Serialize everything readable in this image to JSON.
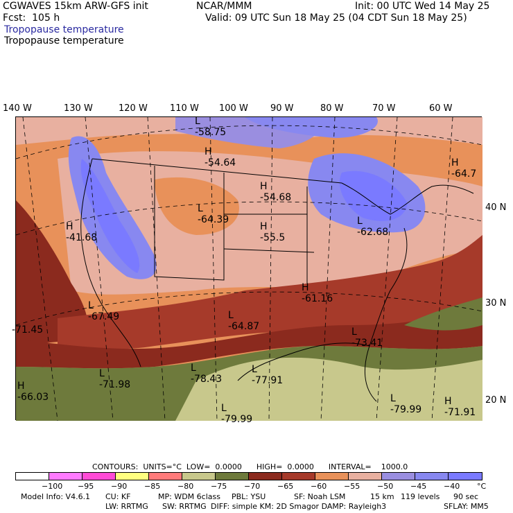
{
  "header": {
    "model": "CGWAVES 15km ARW-GFS init",
    "fcst": "Fcst:  105 h",
    "org": "NCAR/MMM",
    "init": "Init: 00 UTC Wed 14 May 25",
    "valid": "Valid: 09 UTC Sun 18 May 25 (04 CDT Sun 18 May 25)",
    "field1": "Tropopause temperature",
    "field2": "Tropopause temperature"
  },
  "lon_labels": [
    "140 W",
    "130 W",
    "120 W",
    "110 W",
    "100 W",
    "90 W",
    "80 W",
    "70 W",
    "60 W"
  ],
  "lat_labels": [
    "40 N",
    "30 N",
    "20 N"
  ],
  "map_labels": [
    {
      "mark": "L",
      "value": "-58.75"
    },
    {
      "mark": "H",
      "value": "-54.64"
    },
    {
      "mark": "H",
      "value": "-54.68"
    },
    {
      "mark": "L",
      "value": "-64.39"
    },
    {
      "mark": "H",
      "value": "-55.5"
    },
    {
      "mark": "L",
      "value": "-62.68"
    },
    {
      "mark": "H",
      "value": "-41.68"
    },
    {
      "mark": "H",
      "value": "-64.7"
    },
    {
      "mark": "L",
      "value": "-67.49"
    },
    {
      "mark": "H",
      "value": "-61.16"
    },
    {
      "mark": "L",
      "value": "-64.87"
    },
    {
      "mark": "",
      "value": "-71.45"
    },
    {
      "mark": "L",
      "value": "-73.41"
    },
    {
      "mark": "L",
      "value": "-71.98"
    },
    {
      "mark": "L",
      "value": "-78.43"
    },
    {
      "mark": "L",
      "value": "-77.91"
    },
    {
      "mark": "H",
      "value": "-66.03"
    },
    {
      "mark": "L",
      "value": "-79.99"
    },
    {
      "mark": "H",
      "value": "-71.91"
    },
    {
      "mark": "L",
      "value": "-79.99"
    }
  ],
  "contours": {
    "text": "CONTOURS:  UNITS=°C  LOW=  0.0000      HIGH=  0.0000      INTERVAL=    1000.0"
  },
  "colorbar": {
    "colors": [
      "#ffffff",
      "#ff7bff",
      "#ff4ad6",
      "#ffff80",
      "#ff7b7b",
      "#c8c88c",
      "#6e7a3c",
      "#8b2a1e",
      "#a63a2a",
      "#e8915a",
      "#e8b0a0",
      "#9a8ee0",
      "#8888f0",
      "#7a7aff"
    ],
    "labels": [
      "−100",
      "−95",
      "−90",
      "−85",
      "−80",
      "−75",
      "−70",
      "−65",
      "−60",
      "−55",
      "−50",
      "−45",
      "−40",
      "°C"
    ]
  },
  "footer": {
    "line1_a": "Model Info: V4.6.1",
    "line1_b": "CU: KF",
    "line1_c": "MP: WDM 6class",
    "line1_d": "PBL: YSU",
    "line1_e": "SF: Noah LSM",
    "line1_f": "15 km",
    "line1_g": "119 levels",
    "line1_h": "90 sec",
    "line2_a": "LW: RRTMG",
    "line2_b": "SW: RRTMG",
    "line2_c": "DIFF: simple KM: 2D Smagor DAMP: Rayleigh3",
    "line2_d": "SFLAY: MM5"
  }
}
